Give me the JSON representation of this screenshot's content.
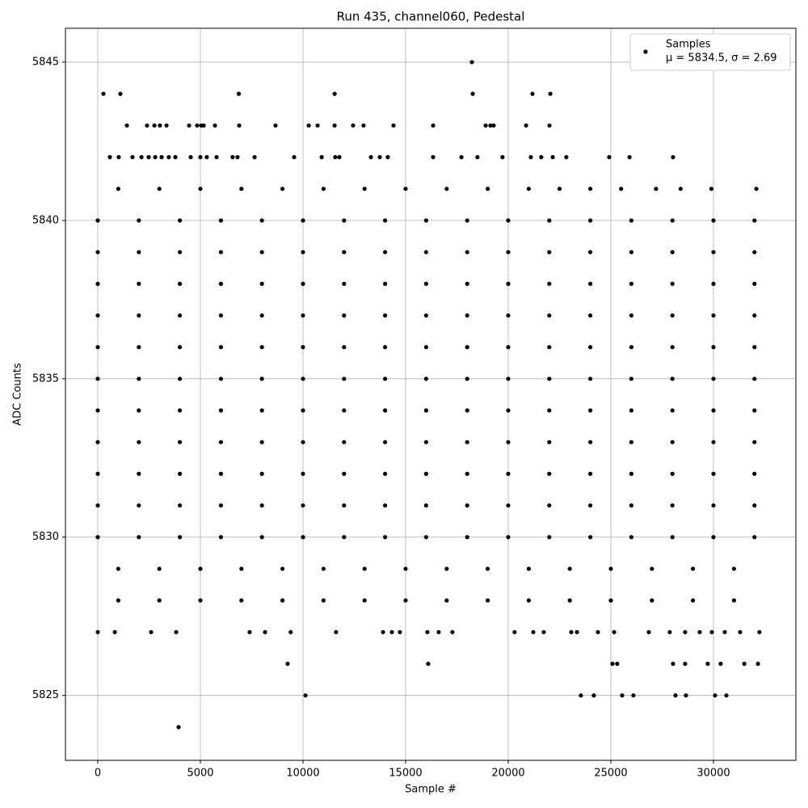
{
  "chart_data": {
    "type": "scatter",
    "title": "Run 435, channel060, Pedestal",
    "x_label": "Sample #",
    "y_label": "ADC Counts",
    "xlim": [
      -1575,
      34016
    ],
    "ylim": [
      5822.95,
      5846.07
    ],
    "xticks": [
      0,
      5000,
      10000,
      15000,
      20000,
      25000,
      30000
    ],
    "yticks": [
      5825,
      5830,
      5835,
      5840,
      5845
    ],
    "grid": true,
    "legend": "upper right",
    "legend_note": "μ = 5834.5, σ = 2.69",
    "series": [
      {
        "name": "Samples",
        "color": "#000000",
        "x": [
          18230,
          275,
          1100,
          6870,
          11540,
          18270,
          21180,
          22050,
          1420,
          2400,
          2760,
          3030,
          3350,
          4450,
          4840,
          5040,
          5160,
          5710,
          6890,
          8660,
          10280,
          10710,
          11540,
          12440,
          12950,
          14410,
          16340,
          18900,
          19130,
          19290,
          20870,
          22010,
          590,
          1020,
          1690,
          2130,
          2480,
          2800,
          3110,
          3460,
          3780,
          4530,
          5000,
          5310,
          5790,
          6570,
          6810,
          7640,
          9570,
          10910,
          11570,
          11770,
          13310,
          13740,
          14130,
          16340,
          17720,
          18500,
          19720,
          21100,
          21610,
          22170,
          22830,
          24920,
          25910,
          28030,
          1000,
          3000,
          5000,
          7000,
          9000,
          11000,
          13000,
          15000,
          17000,
          19000,
          21000,
          22500,
          24000,
          25500,
          27200,
          28400,
          29900,
          32090,
          0,
          2000,
          4000,
          6000,
          8000,
          10000,
          12000,
          14000,
          16000,
          18000,
          20000,
          22000,
          24000,
          26000,
          28000,
          30000,
          32000,
          0,
          2000,
          4000,
          6000,
          8000,
          10000,
          12000,
          14000,
          16000,
          18000,
          20000,
          22000,
          24000,
          26000,
          28000,
          30000,
          32000,
          0,
          2000,
          4000,
          6000,
          8000,
          10000,
          12000,
          14000,
          16000,
          18000,
          20000,
          22000,
          24000,
          26000,
          28000,
          30000,
          32000,
          0,
          2000,
          4000,
          6000,
          8000,
          10000,
          12000,
          14000,
          16000,
          18000,
          20000,
          22000,
          24000,
          26000,
          28000,
          30000,
          32000,
          0,
          2000,
          4000,
          6000,
          8000,
          10000,
          12000,
          14000,
          16000,
          18000,
          20000,
          22000,
          24000,
          26000,
          28000,
          30000,
          32000,
          0,
          2000,
          4000,
          6000,
          8000,
          10000,
          12000,
          14000,
          16000,
          18000,
          20000,
          22000,
          24000,
          26000,
          28000,
          30000,
          32000,
          0,
          2000,
          4000,
          6000,
          8000,
          10000,
          12000,
          14000,
          16000,
          18000,
          20000,
          22000,
          24000,
          26000,
          28000,
          30000,
          32000,
          0,
          2000,
          4000,
          6000,
          8000,
          10000,
          12000,
          14000,
          16000,
          18000,
          20000,
          22000,
          24000,
          26000,
          28000,
          30000,
          32000,
          0,
          2000,
          4000,
          6000,
          8000,
          10000,
          12000,
          14000,
          16000,
          18000,
          20000,
          22000,
          24000,
          26000,
          28000,
          30000,
          32000,
          0,
          2000,
          4000,
          6000,
          8000,
          10000,
          12000,
          14000,
          16000,
          18000,
          20000,
          22000,
          24000,
          26000,
          28000,
          30000,
          32000,
          0,
          2000,
          4000,
          6000,
          8000,
          10000,
          12000,
          14000,
          16000,
          18000,
          20000,
          22000,
          24000,
          26000,
          28000,
          30000,
          32000,
          1000,
          3000,
          5000,
          7000,
          9000,
          11000,
          13000,
          15000,
          17000,
          19000,
          21000,
          23000,
          25000,
          27000,
          29000,
          31000,
          1000,
          3000,
          5000,
          7000,
          9000,
          11000,
          13000,
          15000,
          17000,
          19000,
          21000,
          23000,
          25000,
          27000,
          29000,
          31000,
          0,
          830,
          2600,
          3820,
          7400,
          8150,
          9400,
          11610,
          13900,
          14330,
          14720,
          16060,
          16610,
          17280,
          20310,
          21220,
          21730,
          23070,
          23350,
          24370,
          25160,
          26850,
          27870,
          28620,
          29330,
          29920,
          30550,
          31300,
          32240,
          9250,
          16100,
          25080,
          25310,
          28030,
          28620,
          29720,
          30350,
          31500,
          32170,
          10120,
          23540,
          24170,
          25550,
          26100,
          28150,
          28660,
          30080,
          30630,
          3940
        ],
        "values": [
          5845,
          5844,
          5844,
          5844,
          5844,
          5844,
          5844,
          5844,
          5843,
          5843,
          5843,
          5843,
          5843,
          5843,
          5843,
          5843,
          5843,
          5843,
          5843,
          5843,
          5843,
          5843,
          5843,
          5843,
          5843,
          5843,
          5843,
          5843,
          5843,
          5843,
          5843,
          5843,
          5842,
          5842,
          5842,
          5842,
          5842,
          5842,
          5842,
          5842,
          5842,
          5842,
          5842,
          5842,
          5842,
          5842,
          5842,
          5842,
          5842,
          5842,
          5842,
          5842,
          5842,
          5842,
          5842,
          5842,
          5842,
          5842,
          5842,
          5842,
          5842,
          5842,
          5842,
          5842,
          5842,
          5842,
          5841,
          5841,
          5841,
          5841,
          5841,
          5841,
          5841,
          5841,
          5841,
          5841,
          5841,
          5841,
          5841,
          5841,
          5841,
          5841,
          5841,
          5841,
          5840,
          5840,
          5840,
          5840,
          5840,
          5840,
          5840,
          5840,
          5840,
          5840,
          5840,
          5840,
          5840,
          5840,
          5840,
          5840,
          5840,
          5839,
          5839,
          5839,
          5839,
          5839,
          5839,
          5839,
          5839,
          5839,
          5839,
          5839,
          5839,
          5839,
          5839,
          5839,
          5839,
          5839,
          5838,
          5838,
          5838,
          5838,
          5838,
          5838,
          5838,
          5838,
          5838,
          5838,
          5838,
          5838,
          5838,
          5838,
          5838,
          5838,
          5838,
          5837,
          5837,
          5837,
          5837,
          5837,
          5837,
          5837,
          5837,
          5837,
          5837,
          5837,
          5837,
          5837,
          5837,
          5837,
          5837,
          5837,
          5836,
          5836,
          5836,
          5836,
          5836,
          5836,
          5836,
          5836,
          5836,
          5836,
          5836,
          5836,
          5836,
          5836,
          5836,
          5836,
          5836,
          5835,
          5835,
          5835,
          5835,
          5835,
          5835,
          5835,
          5835,
          5835,
          5835,
          5835,
          5835,
          5835,
          5835,
          5835,
          5835,
          5835,
          5834,
          5834,
          5834,
          5834,
          5834,
          5834,
          5834,
          5834,
          5834,
          5834,
          5834,
          5834,
          5834,
          5834,
          5834,
          5834,
          5834,
          5833,
          5833,
          5833,
          5833,
          5833,
          5833,
          5833,
          5833,
          5833,
          5833,
          5833,
          5833,
          5833,
          5833,
          5833,
          5833,
          5833,
          5832,
          5832,
          5832,
          5832,
          5832,
          5832,
          5832,
          5832,
          5832,
          5832,
          5832,
          5832,
          5832,
          5832,
          5832,
          5832,
          5832,
          5831,
          5831,
          5831,
          5831,
          5831,
          5831,
          5831,
          5831,
          5831,
          5831,
          5831,
          5831,
          5831,
          5831,
          5831,
          5831,
          5831,
          5830,
          5830,
          5830,
          5830,
          5830,
          5830,
          5830,
          5830,
          5830,
          5830,
          5830,
          5830,
          5830,
          5830,
          5830,
          5830,
          5830,
          5829,
          5829,
          5829,
          5829,
          5829,
          5829,
          5829,
          5829,
          5829,
          5829,
          5829,
          5829,
          5829,
          5829,
          5829,
          5829,
          5828,
          5828,
          5828,
          5828,
          5828,
          5828,
          5828,
          5828,
          5828,
          5828,
          5828,
          5828,
          5828,
          5828,
          5828,
          5828,
          5827,
          5827,
          5827,
          5827,
          5827,
          5827,
          5827,
          5827,
          5827,
          5827,
          5827,
          5827,
          5827,
          5827,
          5827,
          5827,
          5827,
          5827,
          5827,
          5827,
          5827,
          5827,
          5827,
          5827,
          5827,
          5827,
          5827,
          5827,
          5827,
          5826,
          5826,
          5826,
          5826,
          5826,
          5826,
          5826,
          5826,
          5826,
          5826,
          5825,
          5825,
          5825,
          5825,
          5825,
          5825,
          5825,
          5825,
          5825,
          5824
        ]
      }
    ]
  }
}
